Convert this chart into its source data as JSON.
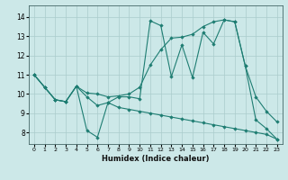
{
  "xlabel": "Humidex (Indice chaleur)",
  "bg_color": "#cce8e8",
  "line_color": "#1e7d72",
  "grid_color": "#aacccc",
  "xlim": [
    -0.5,
    23.5
  ],
  "ylim": [
    7.4,
    14.6
  ],
  "xticks": [
    0,
    1,
    2,
    3,
    4,
    5,
    6,
    7,
    8,
    9,
    10,
    11,
    12,
    13,
    14,
    15,
    16,
    17,
    18,
    19,
    20,
    21,
    22,
    23
  ],
  "yticks": [
    8,
    9,
    10,
    11,
    12,
    13,
    14
  ],
  "series": [
    {
      "x": [
        0,
        1,
        2,
        3,
        4,
        5,
        6,
        7,
        8,
        9,
        10,
        11,
        12,
        13,
        14,
        15,
        16,
        17,
        18,
        19,
        20,
        21,
        22,
        23
      ],
      "y": [
        11.0,
        10.35,
        9.7,
        9.6,
        10.4,
        8.1,
        7.75,
        9.55,
        9.85,
        9.85,
        9.75,
        13.8,
        13.55,
        10.9,
        12.55,
        10.85,
        13.2,
        12.6,
        13.85,
        13.75,
        11.45,
        8.65,
        8.2,
        7.65
      ]
    },
    {
      "x": [
        0,
        1,
        2,
        3,
        4,
        5,
        6,
        7,
        8,
        9,
        10,
        11,
        12,
        13,
        14,
        15,
        16,
        17,
        18,
        19,
        20,
        21,
        22,
        23
      ],
      "y": [
        11.0,
        10.35,
        9.7,
        9.6,
        10.4,
        10.05,
        10.0,
        9.85,
        9.9,
        10.0,
        10.35,
        11.5,
        12.3,
        12.9,
        12.95,
        13.1,
        13.5,
        13.75,
        13.85,
        13.75,
        11.45,
        9.85,
        9.1,
        8.55
      ]
    },
    {
      "x": [
        0,
        1,
        2,
        3,
        4,
        5,
        6,
        7,
        8,
        9,
        10,
        11,
        12,
        13,
        14,
        15,
        16,
        17,
        18,
        19,
        20,
        21,
        22,
        23
      ],
      "y": [
        11.0,
        10.35,
        9.7,
        9.6,
        10.4,
        9.85,
        9.4,
        9.55,
        9.3,
        9.2,
        9.1,
        9.0,
        8.9,
        8.8,
        8.7,
        8.6,
        8.5,
        8.4,
        8.3,
        8.2,
        8.1,
        8.0,
        7.9,
        7.65
      ]
    }
  ]
}
